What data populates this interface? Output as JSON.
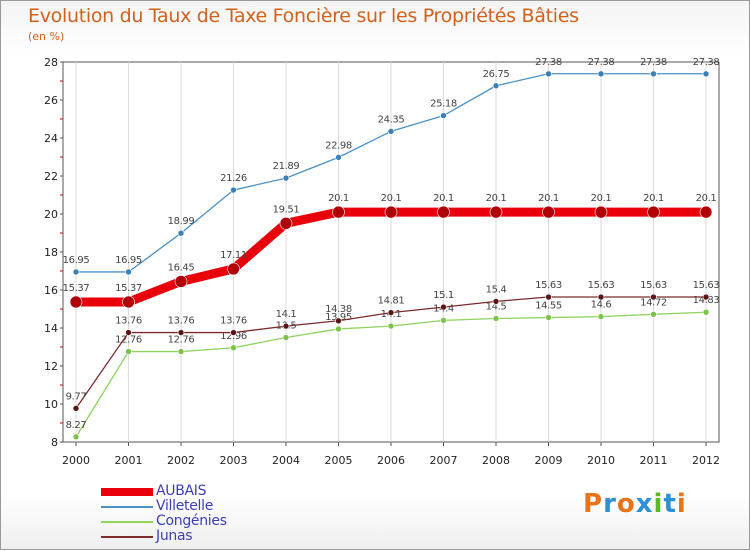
{
  "title": "Evolution du Taux de Taxe Foncière sur les Propriétés Bâties",
  "subtitle": "(en %)",
  "logo_text": "Proxiti",
  "logo_colors": [
    "#e8731a",
    "#2d8fd4",
    "#e8731a",
    "#2d8fd4",
    "#5cb82a",
    "#2d8fd4",
    "#e8731a"
  ],
  "chart_data": {
    "type": "line",
    "x": [
      "2000",
      "2001",
      "2002",
      "2003",
      "2004",
      "2005",
      "2006",
      "2007",
      "2008",
      "2009",
      "2010",
      "2011",
      "2012"
    ],
    "ylim": [
      8,
      28
    ],
    "yticks": [
      "8",
      "10",
      "12",
      "14",
      "16",
      "18",
      "20",
      "22",
      "24",
      "26",
      "28"
    ],
    "grid": "vertical",
    "legend_position": "bottom-left",
    "series": [
      {
        "name": "AUBAIS",
        "color": "#e8000b",
        "values": [
          15.37,
          15.37,
          16.45,
          17.11,
          19.51,
          20.1,
          20.1,
          20.1,
          20.1,
          20.1,
          20.1,
          20.1,
          20.1
        ],
        "labels": [
          "15.37",
          "15.37",
          "16.45",
          "17.11",
          "19.51",
          "20.1",
          "20.1",
          "20.1",
          "20.1",
          "20.1",
          "20.1",
          "20.1",
          "20.1"
        ]
      },
      {
        "name": "Villetelle",
        "color": "#4a90c8",
        "values": [
          16.95,
          16.95,
          18.99,
          21.26,
          21.89,
          22.98,
          24.35,
          25.18,
          26.75,
          27.38,
          27.38,
          27.38,
          27.38
        ],
        "labels": [
          "16.95",
          "16.95",
          "18.99",
          "21.26",
          "21.89",
          "22.98",
          "24.35",
          "25.18",
          "26.75",
          "27.38",
          "27.38",
          "27.38",
          "27.38"
        ]
      },
      {
        "name": "Congénies",
        "color": "#8ed35e",
        "values": [
          8.27,
          12.76,
          12.76,
          12.96,
          13.5,
          13.95,
          14.1,
          14.4,
          14.5,
          14.55,
          14.6,
          14.72,
          14.83
        ],
        "labels": [
          "8.27",
          "12.76",
          "12.76",
          "12.96",
          "13.5",
          "13.95",
          "14.1",
          "14.4",
          "14.5",
          "14.55",
          "14.6",
          "14.72",
          "14.83"
        ]
      },
      {
        "name": "Junas",
        "color": "#7a2b2b",
        "values": [
          9.77,
          13.76,
          13.76,
          13.76,
          14.1,
          14.38,
          14.81,
          15.1,
          15.4,
          15.63,
          15.63,
          15.63,
          15.63
        ],
        "labels": [
          "9.77",
          "13.76",
          "13.76",
          "13.76",
          "14.1",
          "14.38",
          "14.81",
          "15.1",
          "15.4",
          "15.63",
          "15.63",
          "15.63",
          "15.63"
        ]
      }
    ]
  }
}
